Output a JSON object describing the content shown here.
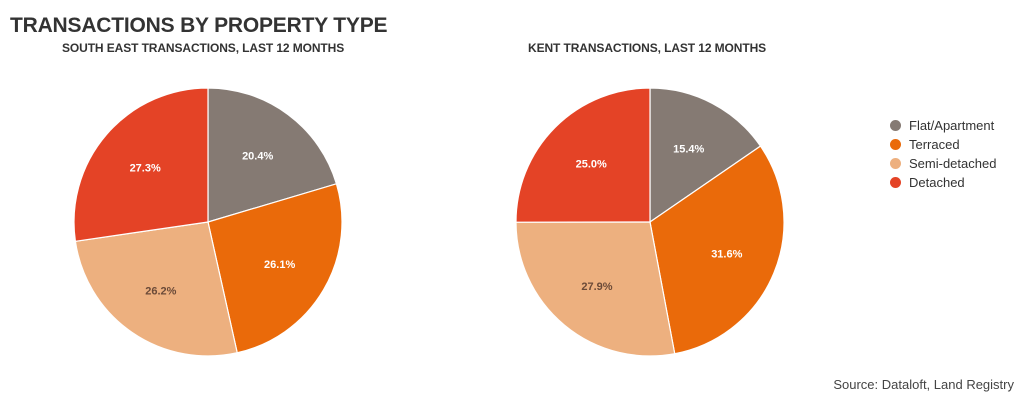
{
  "title": "TRANSACTIONS BY PROPERTY TYPE",
  "source": "Source: Dataloft, Land Registry",
  "legend": [
    {
      "label": "Flat/Apartment",
      "color": "#857A73"
    },
    {
      "label": "Terraced",
      "color": "#EA6A0A"
    },
    {
      "label": "Semi-detached",
      "color": "#EDB07F"
    },
    {
      "label": "Detached",
      "color": "#E44326"
    }
  ],
  "chart_data": [
    {
      "type": "pie",
      "title": "SOUTH EAST TRANSACTIONS, LAST 12 MONTHS",
      "series": [
        {
          "name": "Flat/Apartment",
          "value": 20.4,
          "label": "20.4%",
          "color": "#857A73",
          "label_color": "#ffffff"
        },
        {
          "name": "Terraced",
          "value": 26.1,
          "label": "26.1%",
          "color": "#EA6A0A",
          "label_color": "#ffffff"
        },
        {
          "name": "Semi-detached",
          "value": 26.2,
          "label": "26.2%",
          "color": "#EDB07F",
          "label_color": "#6b4a38"
        },
        {
          "name": "Detached",
          "value": 27.3,
          "label": "27.3%",
          "color": "#E44326",
          "label_color": "#ffffff"
        }
      ],
      "start": "12 o'clock",
      "direction": "clockwise"
    },
    {
      "type": "pie",
      "title": "KENT TRANSACTIONS, LAST 12 MONTHS",
      "series": [
        {
          "name": "Flat/Apartment",
          "value": 15.4,
          "label": "15.4%",
          "color": "#857A73",
          "label_color": "#ffffff"
        },
        {
          "name": "Terraced",
          "value": 31.6,
          "label": "31.6%",
          "color": "#EA6A0A",
          "label_color": "#ffffff"
        },
        {
          "name": "Semi-detached",
          "value": 27.9,
          "label": "27.9%",
          "color": "#EDB07F",
          "label_color": "#6b4a38"
        },
        {
          "name": "Detached",
          "value": 25.0,
          "label": "25.0%",
          "color": "#E44326",
          "label_color": "#ffffff"
        }
      ],
      "start": "12 o'clock",
      "direction": "clockwise"
    }
  ]
}
